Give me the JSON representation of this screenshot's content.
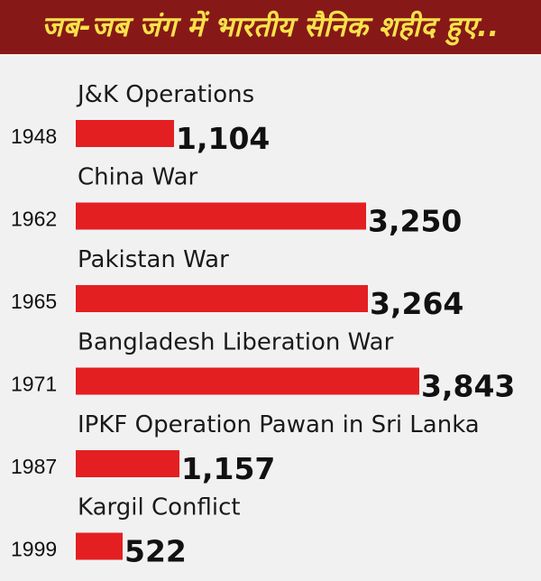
{
  "header": {
    "title": "जब-जब जंग में भारतीय सैनिक शहीद हुए.."
  },
  "colors": {
    "header_bg": "#871818",
    "header_text": "#f7e24a",
    "bar": "#e41f22",
    "background": "#f2f1f1"
  },
  "chart_data": {
    "type": "bar",
    "orientation": "horizontal",
    "title": "जब-जब जंग में भारतीय सैनिक शहीद हुए..",
    "xlabel": "",
    "ylabel": "",
    "grid": false,
    "legend": "none",
    "xlim": [
      0,
      3843
    ],
    "categories": [
      "J&K Operations",
      "China War",
      "Pakistan War",
      "Bangladesh Liberation War",
      "IPKF Operation Pawan in Sri Lanka",
      "Kargil Conflict"
    ],
    "years": [
      "1948",
      "1962",
      "1965",
      "1971",
      "1987",
      "1999"
    ],
    "values": [
      1104,
      3250,
      3264,
      3843,
      1157,
      522
    ],
    "value_labels": [
      "1,104",
      "3,250",
      "3,264",
      "3,843",
      "1,157",
      "522"
    ]
  }
}
